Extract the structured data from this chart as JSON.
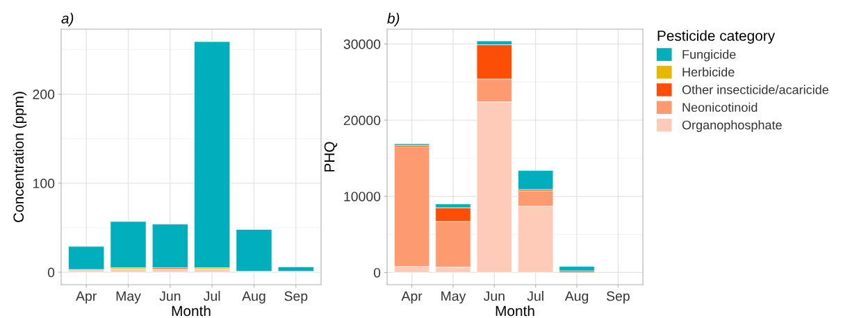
{
  "chart_data": [
    {
      "type": "bar",
      "title": "a)",
      "xlabel": "Month",
      "ylabel": "Concentration (ppm)",
      "categories": [
        "Apr",
        "May",
        "Jun",
        "Jul",
        "Aug",
        "Sep"
      ],
      "stacked": true,
      "ylim": [
        -14,
        273
      ],
      "yticks": [
        0,
        100,
        200
      ],
      "grid": true,
      "legend": false,
      "series": [
        {
          "color": "#fecbb8",
          "values": [
            3,
            3.5,
            3.5,
            3.5,
            1,
            1
          ]
        },
        {
          "color": "#fd9a6f",
          "values": [
            0,
            0,
            0,
            0,
            0,
            0
          ]
        },
        {
          "color": "#fc4e07",
          "values": [
            0,
            0,
            1.5,
            0,
            0,
            0
          ]
        },
        {
          "color": "#e7b800",
          "values": [
            0,
            1.5,
            0,
            1.5,
            0,
            0
          ]
        },
        {
          "color": "#00afbb",
          "values": [
            26,
            52,
            49,
            254,
            47,
            5
          ]
        }
      ]
    },
    {
      "type": "bar",
      "title": "b)",
      "xlabel": "Month",
      "ylabel": "PHQ",
      "legend_title": "Pesticide category",
      "categories": [
        "Apr",
        "May",
        "Jun",
        "Jul",
        "Aug",
        "Sep"
      ],
      "stacked": true,
      "ylim": [
        -1600,
        31950
      ],
      "yticks": [
        0,
        10000,
        20000,
        30000
      ],
      "grid": true,
      "legend": "right",
      "series": [
        {
          "name": "Organophosphate",
          "color": "#fecbb8",
          "values": [
            800,
            700,
            22400,
            8700,
            0,
            0
          ]
        },
        {
          "name": "Neonicotinoid",
          "color": "#fd9a6f",
          "values": [
            15700,
            6000,
            3000,
            2000,
            0,
            0
          ]
        },
        {
          "name": "Other insecticide/acaricide",
          "color": "#fc4e07",
          "values": [
            200,
            1800,
            4500,
            200,
            200,
            0
          ]
        },
        {
          "name": "Herbicide",
          "color": "#e7b800",
          "values": [
            0,
            0,
            0,
            0,
            0,
            0
          ]
        },
        {
          "name": "Fungicide",
          "color": "#00afbb",
          "values": [
            200,
            500,
            500,
            2500,
            600,
            0
          ]
        }
      ]
    }
  ]
}
